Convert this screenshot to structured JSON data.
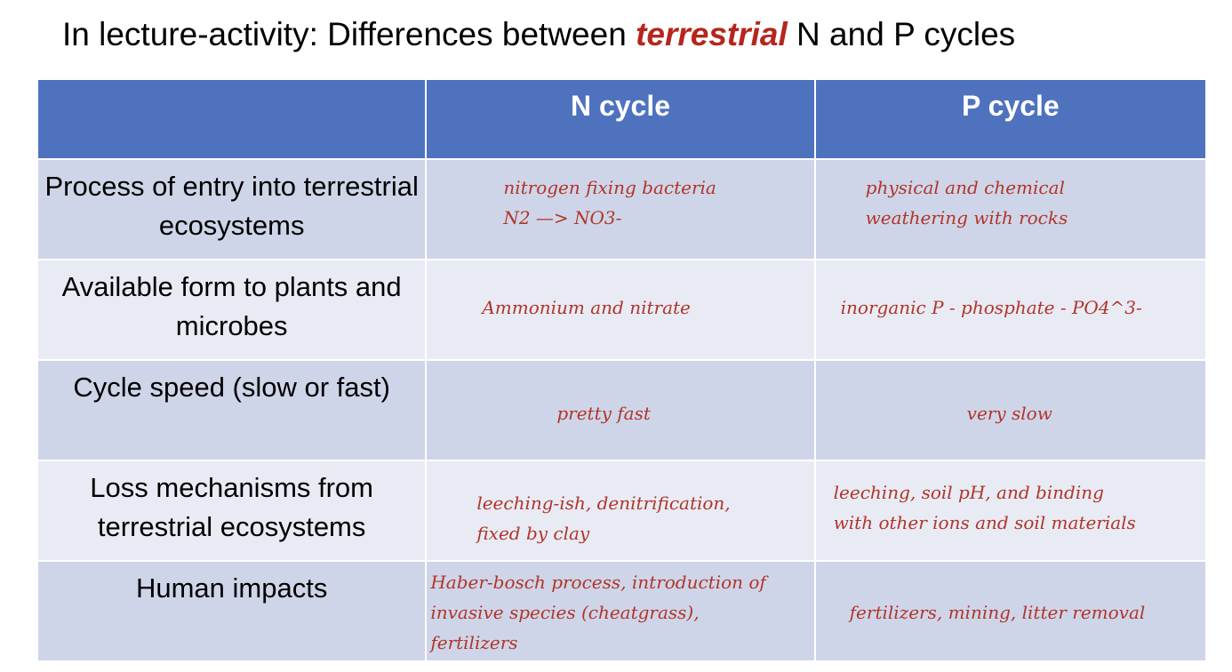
{
  "title": {
    "prefix": "In lecture-activity: Differences between ",
    "emphasis": "terrestrial",
    "suffix": " N and P cycles"
  },
  "table": {
    "headers": [
      "",
      "N cycle",
      "P cycle"
    ],
    "rows": [
      {
        "label": "Process of entry into terrestrial ecosystems",
        "n": [
          "nitrogen fixing bacteria",
          "N2 —> NO3-"
        ],
        "p": [
          "physical and chemical",
          "weathering with rocks"
        ]
      },
      {
        "label": "Available form to plants and microbes",
        "n": [
          "Ammonium and nitrate"
        ],
        "p": [
          "inorganic P - phosphate - PO4^3-"
        ]
      },
      {
        "label": "Cycle speed (slow or fast)",
        "n": [
          "pretty fast"
        ],
        "p": [
          "very slow"
        ]
      },
      {
        "label": "Loss mechanisms from terrestrial ecosystems",
        "n": [
          "leeching-ish, denitrification,",
          "fixed by clay"
        ],
        "p": [
          "leeching, soil pH, and binding",
          "with other ions and soil materials"
        ]
      },
      {
        "label": "Human impacts",
        "n": [
          "Haber-bosch process, introduction of",
          "invasive species (cheatgrass),",
          "fertilizers"
        ],
        "p": [
          "fertilizers, mining, litter removal"
        ]
      }
    ]
  }
}
